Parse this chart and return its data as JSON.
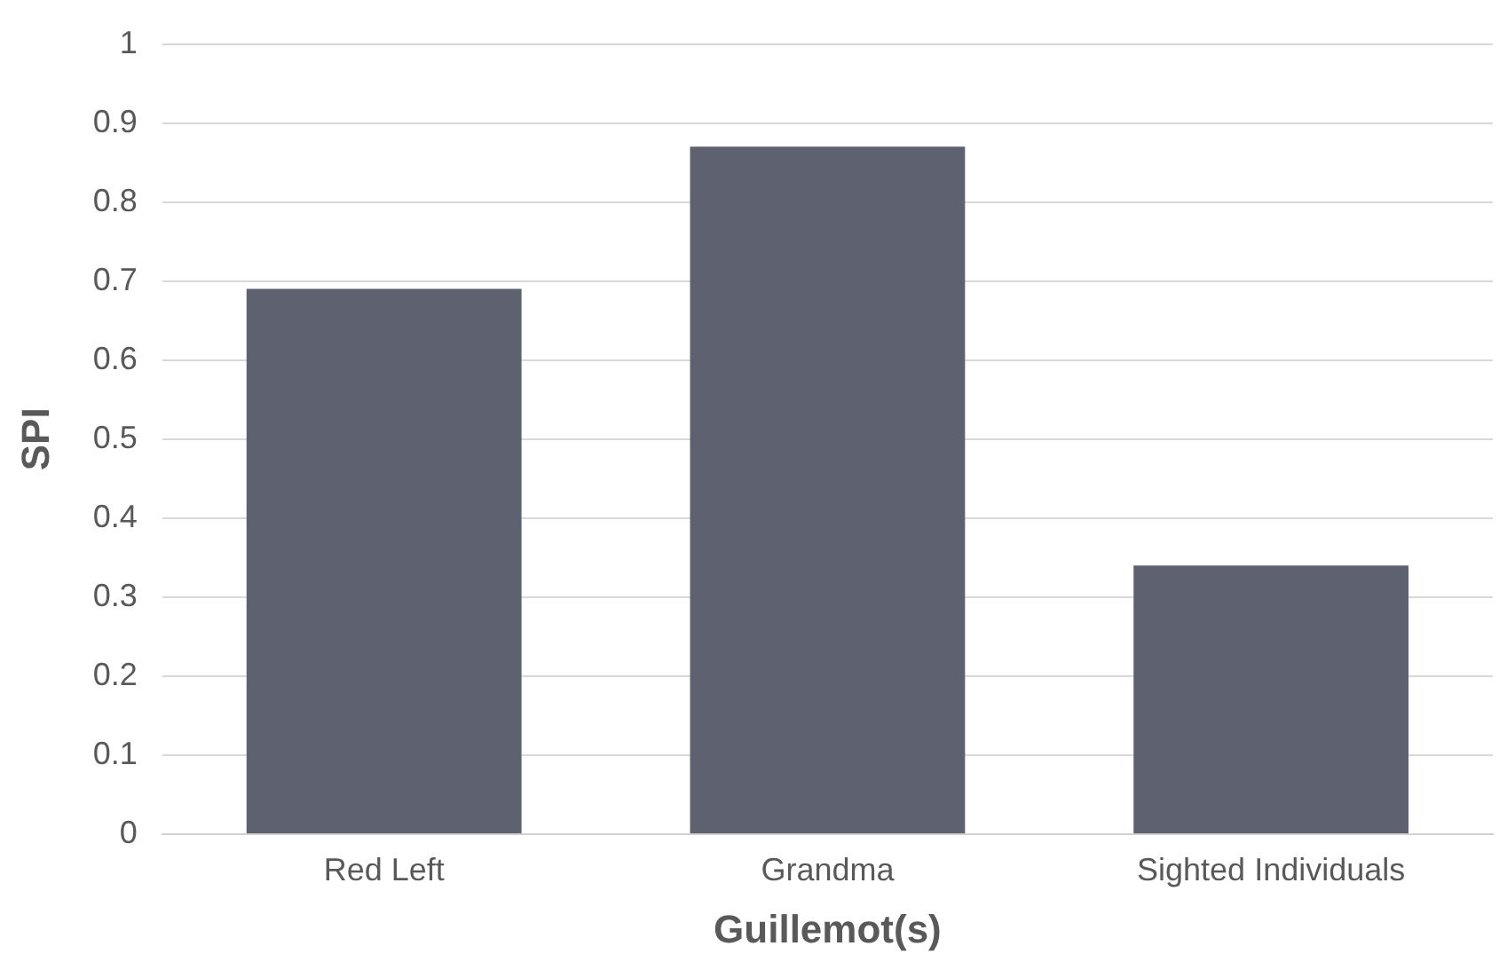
{
  "chart_data": {
    "type": "bar",
    "xlabel": "Guillemot(s)",
    "ylabel": "SPI",
    "categories": [
      "Red Left",
      "Grandma",
      "Sighted Individuals"
    ],
    "values": [
      0.69,
      0.87,
      0.34
    ],
    "color": "#5e6170",
    "ylim": [
      0,
      1
    ],
    "yticks": [
      0,
      0.1,
      0.2,
      0.3,
      0.4,
      0.5,
      0.6,
      0.7,
      0.8,
      0.9,
      1
    ],
    "grid": "y"
  }
}
